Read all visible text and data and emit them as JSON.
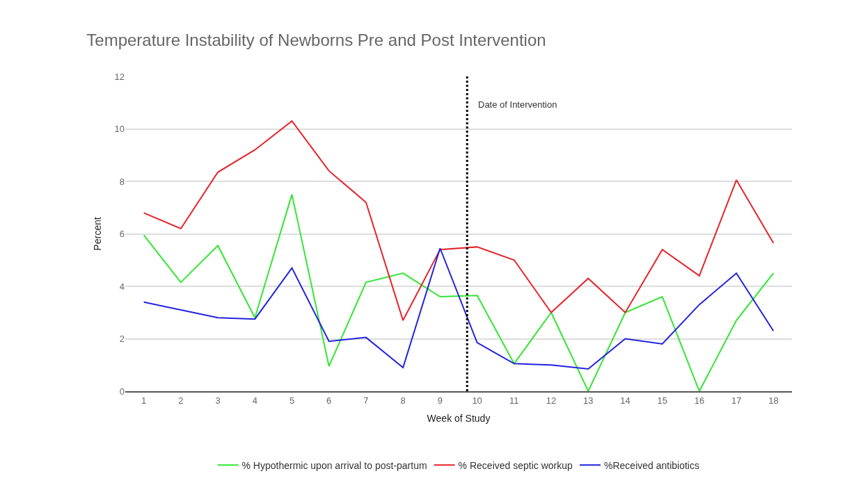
{
  "chart_data": {
    "type": "line",
    "title": "Temperature Instability of Newborns Pre and Post Intervention",
    "xlabel": "Week of Study",
    "ylabel": "Percent",
    "x": [
      1,
      2,
      3,
      4,
      5,
      6,
      7,
      8,
      9,
      10,
      11,
      12,
      13,
      14,
      15,
      16,
      17,
      18
    ],
    "series": [
      {
        "name": "% Hypothermic upon arrival to post-partum",
        "color": "#33e633",
        "values": [
          5.95,
          4.15,
          5.55,
          2.8,
          7.5,
          0.95,
          4.15,
          4.5,
          3.6,
          3.65,
          1.05,
          3.0,
          0,
          3.0,
          3.6,
          0,
          2.7,
          4.5
        ]
      },
      {
        "name": "% Received septic workup",
        "color": "#e6232b",
        "values": [
          6.8,
          6.2,
          8.35,
          9.2,
          10.3,
          8.4,
          7.2,
          2.7,
          5.4,
          5.5,
          5.0,
          3.0,
          4.3,
          3.0,
          5.4,
          4.4,
          8.05,
          5.65
        ]
      },
      {
        "name": "%Received antibiotics",
        "color": "#2222dd",
        "values": [
          3.4,
          3.1,
          2.8,
          2.75,
          4.7,
          1.9,
          2.05,
          0.9,
          5.45,
          1.85,
          1.05,
          1.0,
          0.85,
          2.0,
          1.8,
          3.3,
          4.5,
          2.3
        ]
      }
    ],
    "xlim": [
      0.5,
      18.5
    ],
    "xticks": [
      1,
      2,
      3,
      4,
      5,
      6,
      7,
      8,
      9,
      10,
      11,
      12,
      13,
      14,
      15,
      16,
      17,
      18
    ],
    "ylim": [
      0,
      12
    ],
    "yticks": [
      0,
      2,
      4,
      6,
      8,
      10,
      12
    ],
    "ref_lines": [
      {
        "axis": "x",
        "value": 9.73,
        "label": "Date of Intervention",
        "color": "#000000",
        "line_style": "dotted"
      }
    ],
    "grid": "y",
    "legend": "bottom",
    "marker": "none",
    "line_style": "solid"
  }
}
